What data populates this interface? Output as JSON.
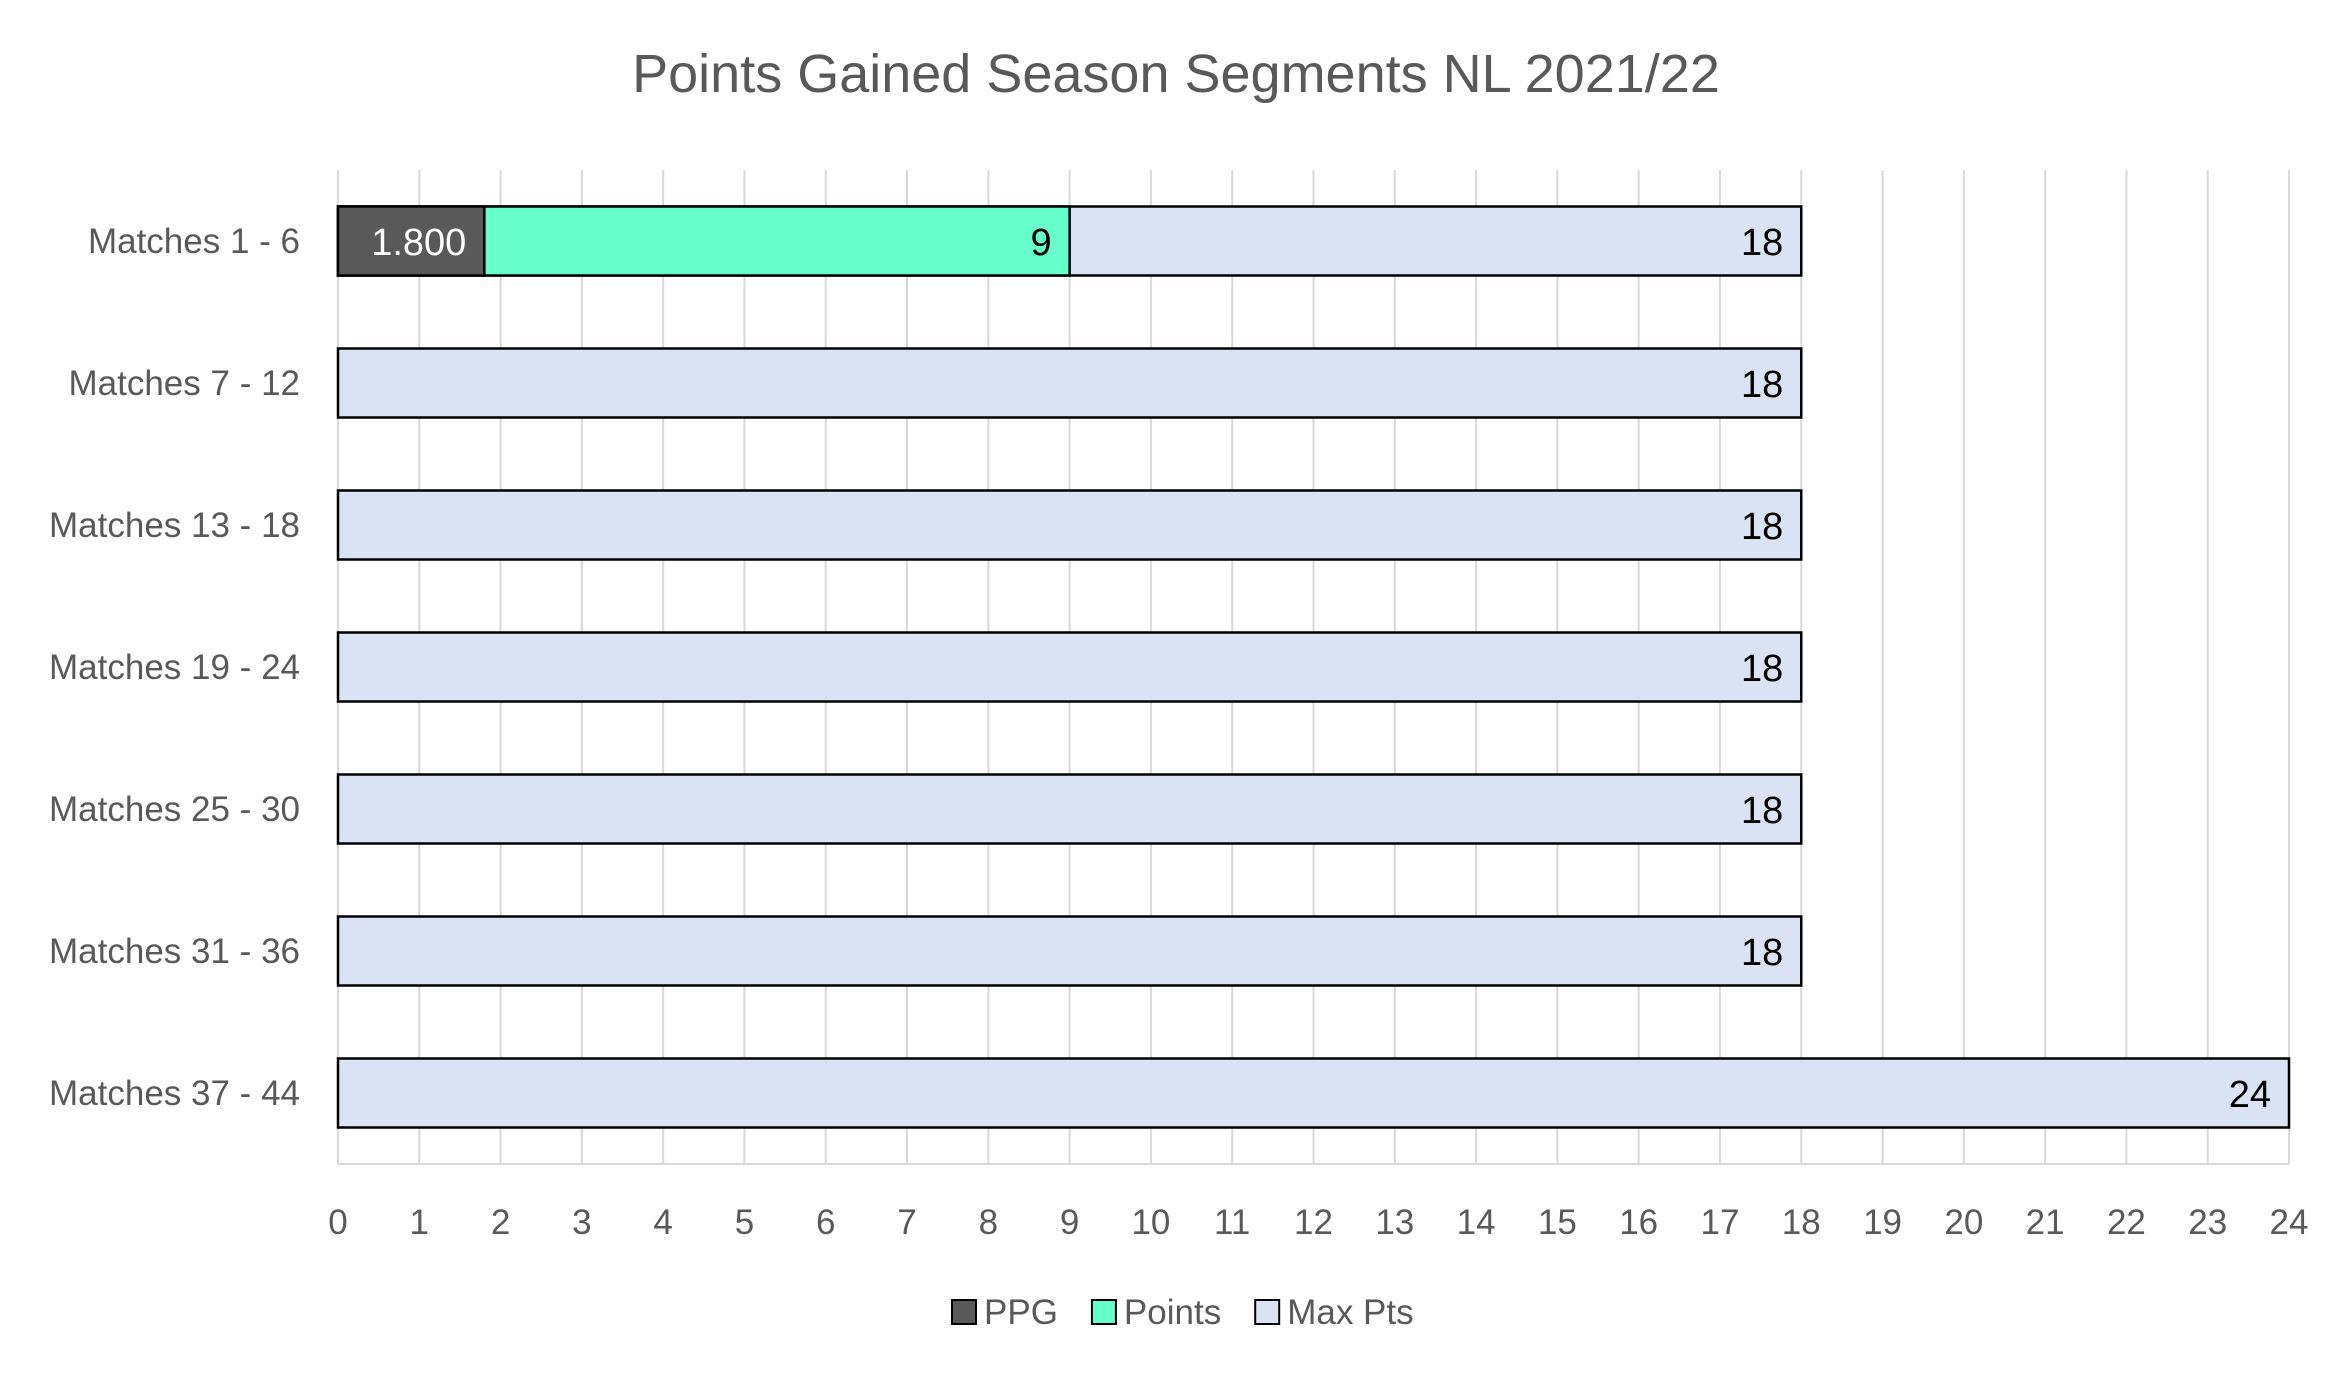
{
  "chart_data": {
    "type": "bar",
    "orientation": "horizontal",
    "stacked": false,
    "overlapping": true,
    "title": "Points Gained Season Segments NL 2021/22",
    "xlabel": "",
    "ylabel": "",
    "xlim": [
      0,
      24
    ],
    "x_ticks": [
      0,
      1,
      2,
      3,
      4,
      5,
      6,
      7,
      8,
      9,
      10,
      11,
      12,
      13,
      14,
      15,
      16,
      17,
      18,
      19,
      20,
      21,
      22,
      23,
      24
    ],
    "grid": "vertical",
    "legend": "bottom",
    "categories": [
      "Matches 1 - 6",
      "Matches 7 - 12",
      "Matches 13 - 18",
      "Matches 19 - 24",
      "Matches 25 - 30",
      "Matches 31 - 36",
      "Matches 37 - 44"
    ],
    "series": [
      {
        "name": "PPG",
        "color": "#595959",
        "label_color": "#ffffff",
        "values": [
          1.8,
          null,
          null,
          null,
          null,
          null,
          null
        ],
        "labels": [
          "1.800",
          "",
          "",
          "",
          "",
          "",
          ""
        ]
      },
      {
        "name": "Points",
        "color": "#66ffcc",
        "label_color": "#000000",
        "values": [
          9,
          null,
          null,
          null,
          null,
          null,
          null
        ],
        "labels": [
          "9",
          "",
          "",
          "",
          "",
          "",
          ""
        ]
      },
      {
        "name": "Max Pts",
        "color": "#dae3f3",
        "label_color": "#000000",
        "values": [
          18,
          18,
          18,
          18,
          18,
          18,
          24
        ],
        "labels": [
          "18",
          "18",
          "18",
          "18",
          "18",
          "18",
          "24"
        ]
      }
    ]
  }
}
